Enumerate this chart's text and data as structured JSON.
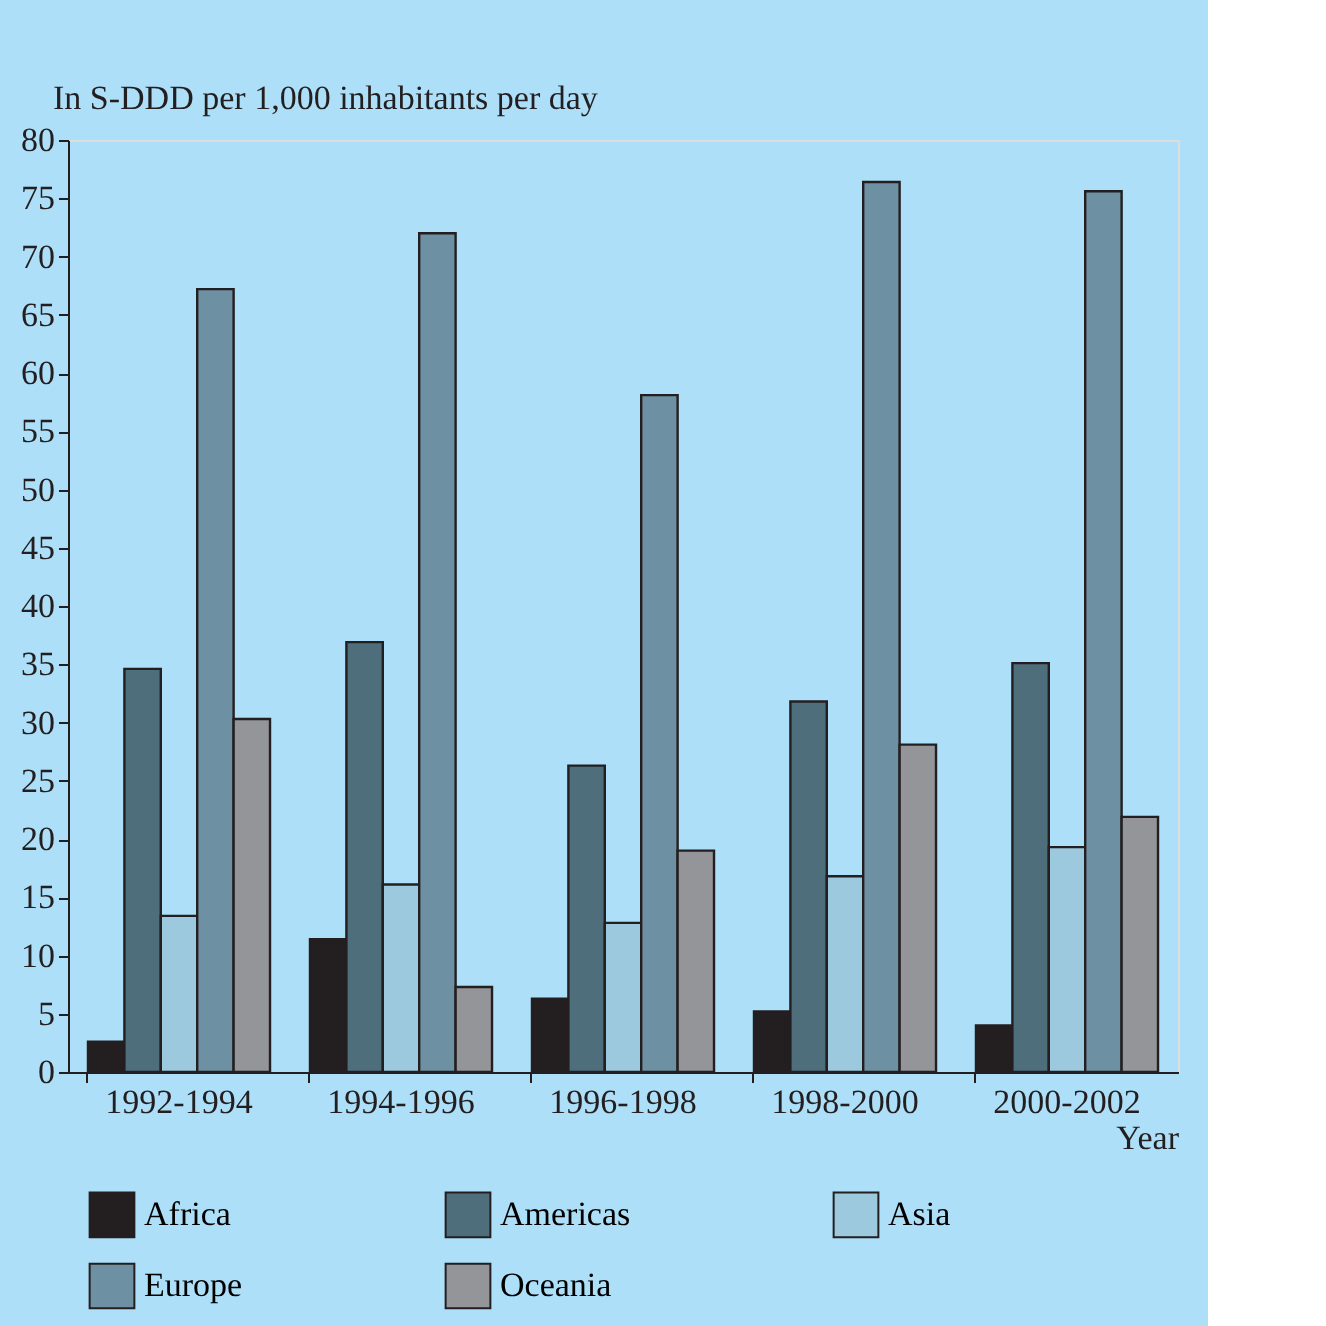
{
  "chart_data": {
    "type": "bar",
    "ylabel": "In S-DDD per 1,000 inhabitants per day",
    "xlabel": "Year",
    "categories": [
      "1992-1994",
      "1994-1996",
      "1996-1998",
      "1998-2000",
      "2000-2002"
    ],
    "series": [
      {
        "name": "Africa",
        "color": "#231f20",
        "values": [
          2.6,
          11.4,
          6.3,
          5.2,
          4.0
        ]
      },
      {
        "name": "Americas",
        "color": "#4f6e7c",
        "values": [
          34.6,
          36.9,
          26.3,
          31.8,
          35.1
        ]
      },
      {
        "name": "Asia",
        "color": "#9cc9dd",
        "values": [
          13.4,
          16.1,
          12.8,
          16.8,
          19.3
        ]
      },
      {
        "name": "Europe",
        "color": "#6d91a2",
        "values": [
          67.2,
          72.0,
          58.1,
          76.4,
          75.6
        ]
      },
      {
        "name": "Oceania",
        "color": "#939598",
        "values": [
          30.3,
          7.3,
          19.0,
          28.1,
          21.9
        ]
      }
    ],
    "ylim": [
      0,
      80
    ],
    "yticks": [
      0,
      5,
      10,
      15,
      20,
      25,
      30,
      35,
      40,
      45,
      50,
      55,
      60,
      65,
      70,
      75,
      80
    ],
    "grid": false,
    "legend": "bottom"
  }
}
